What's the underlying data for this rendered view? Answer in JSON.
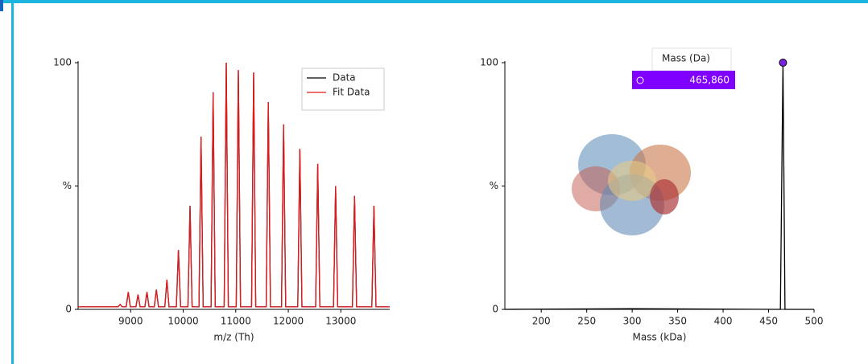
{
  "chart_data": [
    {
      "type": "line",
      "xlabel": "m/z (Th)",
      "x": [
        8000,
        8760,
        8800,
        8840,
        8915,
        8955,
        8995,
        9100,
        9140,
        9180,
        9270,
        9310,
        9350,
        9450,
        9490,
        9530,
        9650,
        9690,
        9730,
        9870,
        9910,
        9950,
        10090,
        10130,
        10170,
        10300,
        10340,
        10380,
        10530,
        10570,
        10610,
        10780,
        10820,
        10860,
        11010,
        11050,
        11090,
        11300,
        11340,
        11380,
        11580,
        11620,
        11660,
        11870,
        11910,
        11950,
        12180,
        12220,
        12260,
        12520,
        12560,
        12600,
        12860,
        12900,
        12940,
        13220,
        13260,
        13300,
        13590,
        13630,
        13670,
        13930
      ],
      "series": [
        {
          "name": "Data",
          "color": "#000000",
          "values": [
            1,
            1,
            2,
            1,
            1,
            7,
            1,
            1,
            6,
            1,
            1,
            7,
            1,
            1,
            8,
            1,
            1,
            12,
            1,
            1,
            24,
            1,
            1,
            42,
            1,
            1,
            70,
            1,
            1,
            88,
            1,
            1,
            100,
            1,
            1,
            97,
            1,
            1,
            96,
            1,
            1,
            84,
            1,
            1,
            75,
            1,
            1,
            65,
            1,
            1,
            59,
            1,
            1,
            50,
            1,
            1,
            46,
            1,
            1,
            42,
            1,
            1
          ]
        },
        {
          "name": "Fit Data",
          "color": "#e31a1c",
          "values": [
            1,
            1,
            2,
            1,
            1,
            7,
            1,
            1,
            6,
            1,
            1,
            7,
            1,
            1,
            8,
            1,
            1,
            12,
            1,
            1,
            24,
            1,
            1,
            42,
            1,
            1,
            70,
            1,
            1,
            88,
            1,
            1,
            100,
            1,
            1,
            97,
            1,
            1,
            96,
            1,
            1,
            84,
            1,
            1,
            75,
            1,
            1,
            65,
            1,
            1,
            59,
            1,
            1,
            50,
            1,
            1,
            46,
            1,
            1,
            42,
            1,
            1
          ]
        }
      ],
      "xlim": [
        8000,
        13930
      ],
      "xticks": [
        9000,
        10000,
        11000,
        12000,
        13000
      ],
      "ylim": [
        0,
        100
      ],
      "yticks": [
        0,
        {
          "value": 50,
          "label": "%"
        },
        100
      ],
      "legend": "upper-right"
    },
    {
      "type": "line",
      "xlabel": "Mass (kDa)",
      "x": [
        160,
        300,
        460,
        463,
        465.86,
        468,
        472,
        500
      ],
      "series": [
        {
          "name": "Mass",
          "color": "#000000",
          "values": [
            0,
            0.3,
            0,
            0,
            100,
            0,
            0,
            0
          ]
        }
      ],
      "marker": {
        "index": 4,
        "color": "#7b1fe0"
      },
      "tooltip": {
        "header": "Mass (Da)",
        "label": "465,860"
      },
      "xlim": [
        160,
        500
      ],
      "xticks": [
        200,
        250,
        300,
        350,
        400,
        450,
        500
      ],
      "ylim": [
        0,
        100
      ],
      "yticks": [
        0,
        {
          "value": 50,
          "label": "%"
        },
        100
      ]
    }
  ]
}
